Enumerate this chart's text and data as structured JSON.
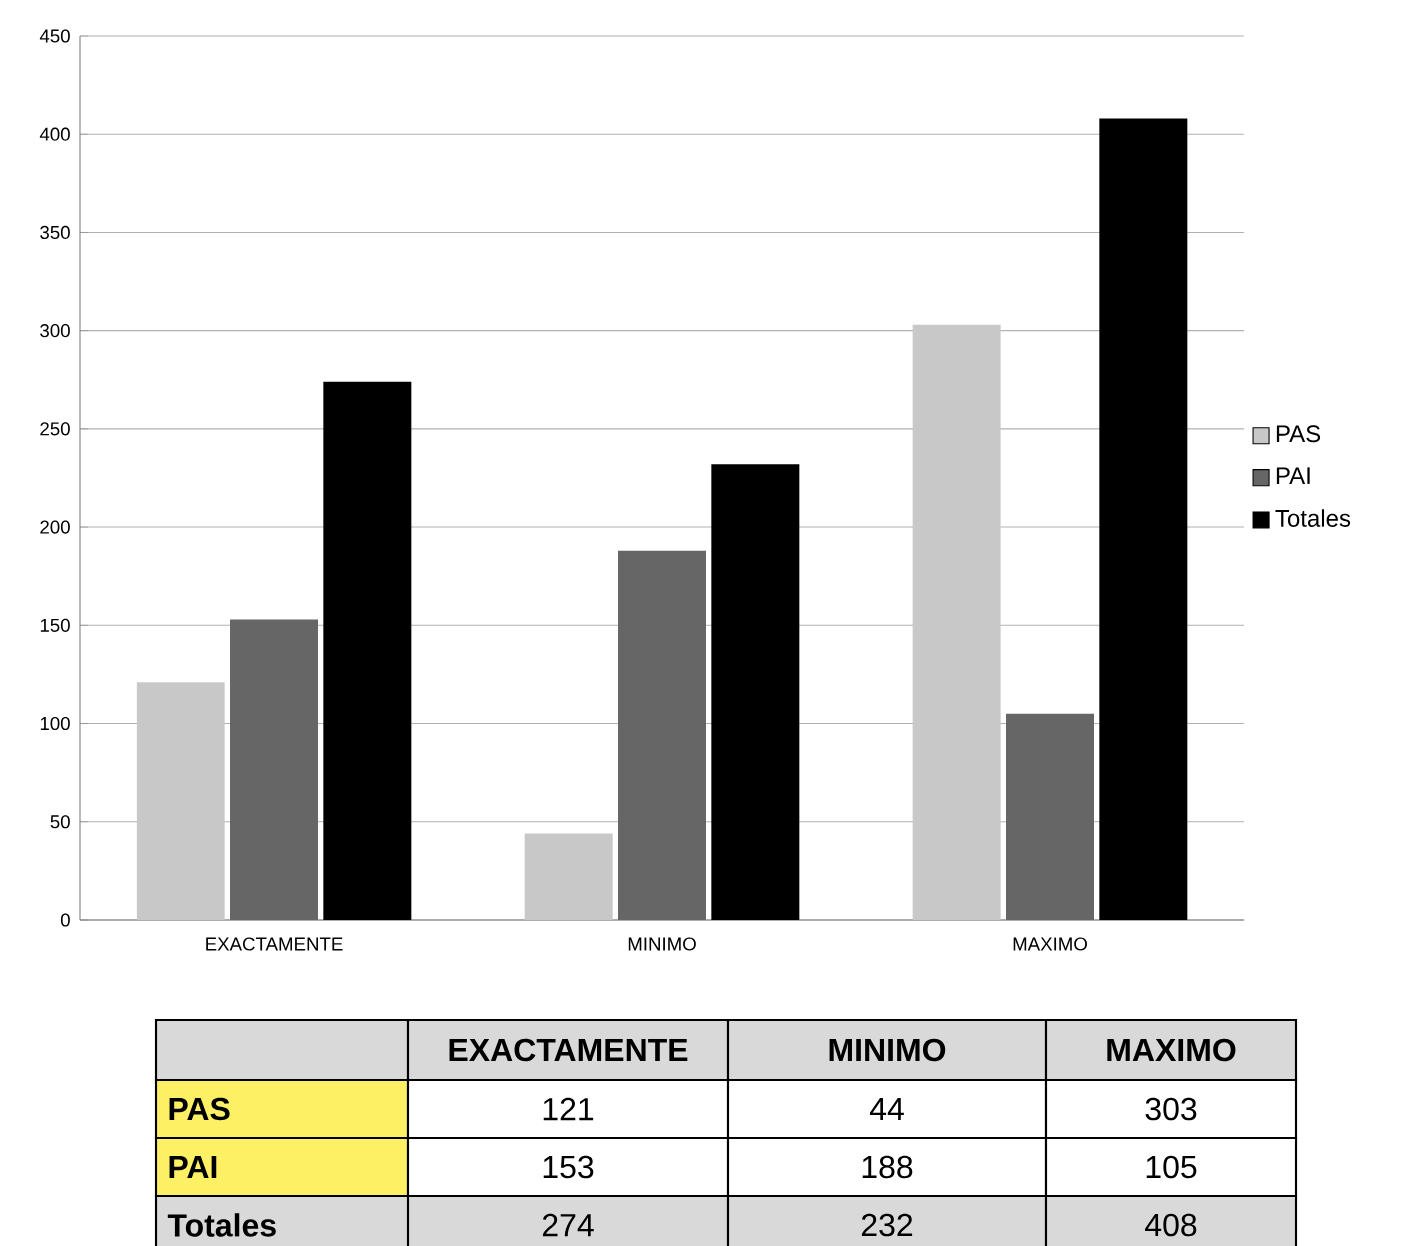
{
  "chart_data": [
    {
      "type": "bar",
      "categories": [
        "EXACTAMENTE",
        "MINIMO",
        "MAXIMO"
      ],
      "series": [
        {
          "name": "PAS",
          "color": "#c8c8c8",
          "values": [
            121,
            44,
            303
          ]
        },
        {
          "name": "PAI",
          "color": "#666666",
          "values": [
            153,
            188,
            105
          ]
        },
        {
          "name": "Totales",
          "color": "#000000",
          "values": [
            274,
            232,
            408
          ]
        }
      ],
      "ylim": [
        0,
        450
      ],
      "yticks": [
        0,
        50,
        100,
        150,
        200,
        250,
        300,
        350,
        400,
        450
      ],
      "grid": "y",
      "legend": "right"
    },
    {
      "type": "other",
      "categories": [
        "EXACTAMENTE",
        "MINIMO",
        "MAXIMO"
      ],
      "series": [
        {
          "name": "PAS",
          "values": [
            121,
            44,
            303
          ]
        },
        {
          "name": "PAI",
          "values": [
            153,
            188,
            105
          ]
        },
        {
          "name": "Totales",
          "values": [
            274,
            232,
            408
          ]
        }
      ],
      "data_labels": true
    }
  ]
}
